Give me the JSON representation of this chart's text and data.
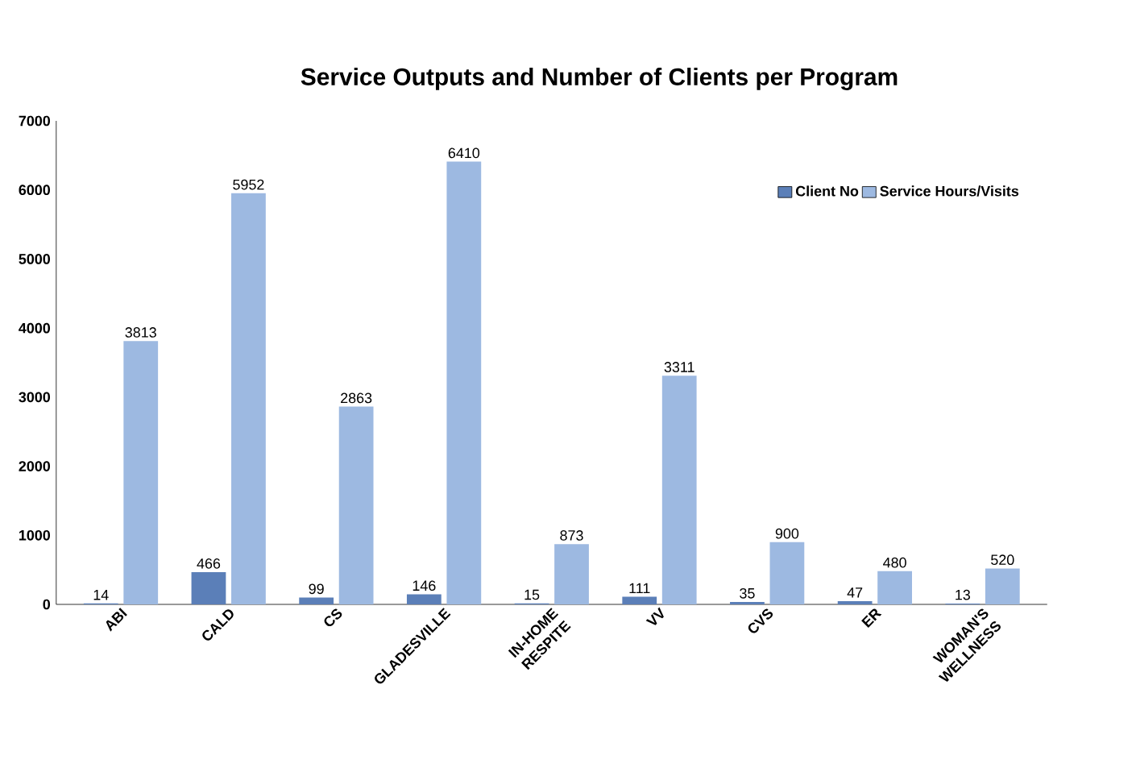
{
  "chart_data": {
    "type": "bar",
    "title": "Service Outputs and Number of Clients per Program",
    "categories": [
      "ABI",
      "CALD",
      "CS",
      "GLADESVILLE",
      "IN-HOME RESPITE",
      "VV",
      "CVS",
      "ER",
      "WOMAN'S WELLNESS"
    ],
    "series": [
      {
        "name": "Client No",
        "color": "#5b7fb8",
        "values": [
          14,
          466,
          99,
          146,
          15,
          111,
          35,
          47,
          13
        ]
      },
      {
        "name": "Service Hours/Visits",
        "color": "#9db9e1",
        "values": [
          3813,
          5952,
          2863,
          6410,
          873,
          3311,
          900,
          480,
          520
        ]
      }
    ],
    "ylim": [
      0,
      7000
    ],
    "yticks": [
      0,
      1000,
      2000,
      3000,
      4000,
      5000,
      6000,
      7000
    ],
    "data_labels": true,
    "legend": "top right",
    "grid": false
  }
}
